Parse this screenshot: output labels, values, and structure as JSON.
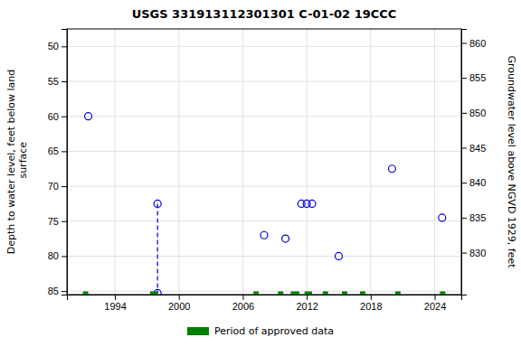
{
  "chart_data": {
    "type": "scatter",
    "title": "USGS 331913112301301 C-01-02 19CCC",
    "y_label": "Depth to water level, feet below land\n surface",
    "y2_label": "Groundwater level above NGVD 1929, feet",
    "xlim": [
      1989.5,
      2026.5
    ],
    "xticks": [
      1994,
      2000,
      2006,
      2012,
      2018,
      2024
    ],
    "ylim": [
      85.5,
      47.5
    ],
    "yticks": [
      50,
      55,
      60,
      65,
      70,
      75,
      80,
      85
    ],
    "y2lim": [
      824,
      862
    ],
    "y2ticks": [
      860,
      855,
      850,
      845,
      840,
      835,
      830
    ],
    "grid": true,
    "legend": "bottom",
    "series": [
      {
        "type": "scatter",
        "color": "#0000cc",
        "marker": "circle",
        "x": [
          1991.5,
          1998,
          1998,
          2008,
          2010,
          2011.5,
          2012,
          2012.5,
          2015,
          2020,
          2024.7
        ],
        "values": [
          60.0,
          72.5,
          85.3,
          77.0,
          77.5,
          72.5,
          72.5,
          72.5,
          80.0,
          67.5,
          74.5
        ]
      },
      {
        "type": "line",
        "color": "#0000cc",
        "line_style": "dashed",
        "x": [
          1998,
          1998
        ],
        "values": [
          72.5,
          85.3
        ]
      },
      {
        "type": "interval",
        "name": "Period of approved data",
        "color": "#008000",
        "x": [
          [
            1991.0,
            1991.5
          ],
          [
            1997.3,
            1998.0
          ],
          [
            2007.0,
            2007.5
          ],
          [
            2009.3,
            2009.8
          ],
          [
            2010.5,
            2011.3
          ],
          [
            2011.8,
            2012.5
          ],
          [
            2013.5,
            2014.0
          ],
          [
            2015.3,
            2015.8
          ],
          [
            2017.0,
            2017.5
          ],
          [
            2020.3,
            2020.8
          ],
          [
            2024.5,
            2025.0
          ]
        ],
        "values": [
          85.3,
          85.3,
          85.3,
          85.3,
          85.3,
          85.3,
          85.3,
          85.3,
          85.3,
          85.3,
          85.3
        ]
      }
    ]
  }
}
